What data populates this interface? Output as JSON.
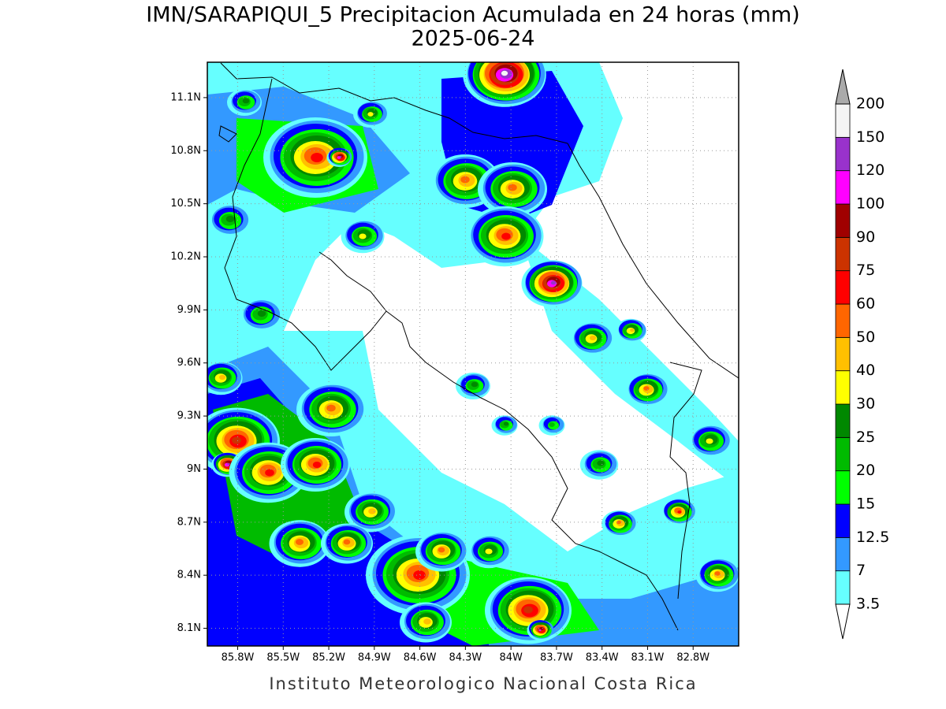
{
  "map": {
    "title": "IMN/SARAPIQUI_5 Precipitacion Acumulada en 24 horas (mm)",
    "subtitle": "2025-06-24",
    "footer": "Instituto Meteorologico Nacional Costa Rica",
    "lat_range": [
      8.0,
      11.3
    ],
    "lon_range": [
      -86.0,
      -82.5
    ],
    "lat_ticks": [
      {
        "value": 8.1,
        "label": "8.1N"
      },
      {
        "value": 8.4,
        "label": "8.4N"
      },
      {
        "value": 8.7,
        "label": "8.7N"
      },
      {
        "value": 9.0,
        "label": "9N"
      },
      {
        "value": 9.3,
        "label": "9.3N"
      },
      {
        "value": 9.6,
        "label": "9.6N"
      },
      {
        "value": 9.9,
        "label": "9.9N"
      },
      {
        "value": 10.2,
        "label": "10.2N"
      },
      {
        "value": 10.5,
        "label": "10.5N"
      },
      {
        "value": 10.8,
        "label": "10.8N"
      },
      {
        "value": 11.1,
        "label": "11.1N"
      }
    ],
    "lon_ticks": [
      {
        "value": -85.8,
        "label": "85.8W"
      },
      {
        "value": -85.5,
        "label": "85.5W"
      },
      {
        "value": -85.2,
        "label": "85.2W"
      },
      {
        "value": -84.9,
        "label": "84.9W"
      },
      {
        "value": -84.6,
        "label": "84.6W"
      },
      {
        "value": -84.3,
        "label": "84.3W"
      },
      {
        "value": -84.0,
        "label": "84W"
      },
      {
        "value": -83.7,
        "label": "83.7W"
      },
      {
        "value": -83.4,
        "label": "83.4W"
      },
      {
        "value": -83.1,
        "label": "83.1W"
      },
      {
        "value": -82.8,
        "label": "82.8W"
      }
    ],
    "grid": true,
    "colorbar": {
      "levels": [
        3.5,
        7,
        12.5,
        15,
        20,
        25,
        30,
        40,
        50,
        60,
        75,
        90,
        100,
        120,
        150,
        200
      ],
      "colors": [
        "#66ffff",
        "#3399ff",
        "#0000ff",
        "#00ff00",
        "#00bb00",
        "#008800",
        "#ffff00",
        "#ffc000",
        "#ff6600",
        "#ff0000",
        "#cc3300",
        "#a00000",
        "#ff00ff",
        "#9932cc",
        "#f5f5f5"
      ],
      "over_color": "#aaaaaa",
      "under_color": "#ffffff"
    }
  }
}
